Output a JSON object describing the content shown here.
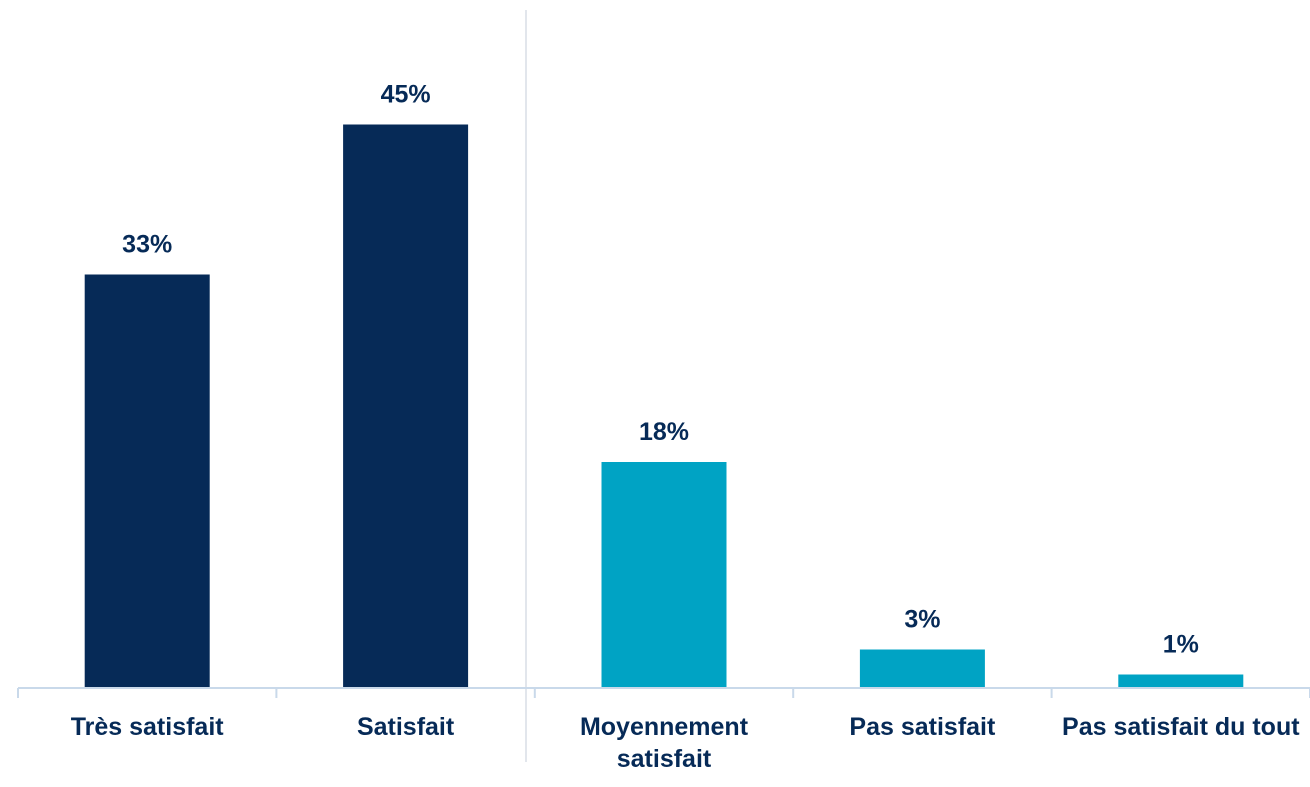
{
  "chart_data": {
    "type": "bar",
    "categories": [
      "Très satisfait",
      "Satisfait",
      "Moyennement satisfait",
      "Pas satisfait",
      "Pas satisfait du tout"
    ],
    "values": [
      33,
      45,
      18,
      3,
      1
    ],
    "value_labels": [
      "33%",
      "45%",
      "18%",
      "3%",
      "1%"
    ],
    "colors": [
      "#062a57",
      "#062a57",
      "#00a3c4",
      "#00a3c4",
      "#00a3c4"
    ],
    "ylim": [
      0,
      50
    ]
  }
}
